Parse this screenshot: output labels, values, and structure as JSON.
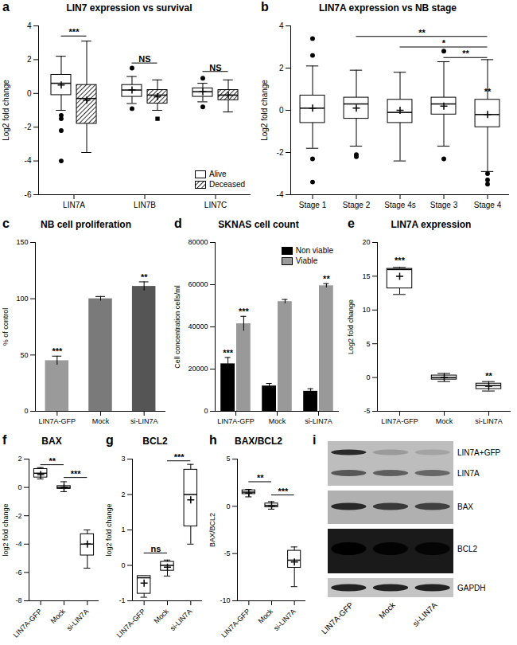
{
  "chart_data": [
    {
      "panel": "a",
      "type": "box",
      "title": "LIN7 expression vs survival",
      "y_label": "Log2 fold change",
      "categories": [
        "LIN7A",
        "LIN7B",
        "LIN7C"
      ],
      "series": [
        {
          "name": "Alive",
          "color": "#ffffff",
          "marker": "circle",
          "values": [
            {
              "min": -1.0,
              "q1": -0.1,
              "median": 0.6,
              "q3": 1.1,
              "max": 2.2,
              "mean": 0.5,
              "outliers": [
                -1.3,
                -1.5,
                -2.2,
                -4.0
              ]
            },
            {
              "min": -0.6,
              "q1": -0.2,
              "median": 0.2,
              "q3": 0.5,
              "max": 1.0,
              "mean": 0.2,
              "outliers": [
                -0.9,
                1.5
              ]
            },
            {
              "min": -0.5,
              "q1": -0.2,
              "median": 0.1,
              "q3": 0.3,
              "max": 0.6,
              "mean": 0.1,
              "outliers": [
                -0.8,
                0.9
              ]
            }
          ]
        },
        {
          "name": "Deceased",
          "color": "#000000",
          "marker": "square",
          "values": [
            {
              "min": -3.5,
              "q1": -1.8,
              "median": -0.3,
              "q3": 0.5,
              "max": 3.1,
              "mean": -0.4,
              "outliers": []
            },
            {
              "min": -1.0,
              "q1": -0.6,
              "median": -0.1,
              "q3": 0.2,
              "max": 0.8,
              "mean": -0.2,
              "outliers": [
                -1.5
              ]
            },
            {
              "min": -1.1,
              "q1": -0.4,
              "median": -0.1,
              "q3": 0.2,
              "max": 0.8,
              "mean": -0.1,
              "outliers": []
            }
          ]
        }
      ],
      "ylim": [
        -6,
        4
      ],
      "yticks": [
        -6,
        -4,
        -2,
        0,
        2,
        4
      ],
      "legend": "bottom-right",
      "annotations": [
        {
          "text": "***",
          "from": "LIN7A",
          "to": "LIN7A",
          "y": 3.4
        },
        {
          "text": "NS",
          "from": "LIN7B",
          "to": "LIN7B",
          "y": 1.8
        },
        {
          "text": "NS",
          "from": "LIN7C",
          "to": "LIN7C",
          "y": 1.3
        }
      ]
    },
    {
      "panel": "b",
      "type": "box",
      "title": "LIN7A expression vs NB stage",
      "y_label": "Log2 fold change",
      "categories": [
        "Stage 1",
        "Stage 2",
        "Stage 4s",
        "Stage 3",
        "Stage 4"
      ],
      "series": [
        {
          "color": "#ffffff",
          "marker": "circle",
          "values": [
            {
              "min": -1.8,
              "q1": -0.6,
              "median": 0.1,
              "q3": 0.7,
              "max": 2.1,
              "mean": 0.1,
              "outliers": [
                2.6,
                3.4,
                -2.3,
                -3.4
              ]
            },
            {
              "min": -1.7,
              "q1": -0.4,
              "median": 0.3,
              "q3": 0.6,
              "max": 1.9,
              "mean": 0.1,
              "outliers": [
                -2.1,
                -2.2
              ]
            },
            {
              "min": -2.4,
              "q1": -0.6,
              "median": -0.1,
              "q3": 0.5,
              "max": 1.8,
              "mean": 0.0,
              "outliers": []
            },
            {
              "min": -1.7,
              "q1": -0.2,
              "median": 0.3,
              "q3": 0.6,
              "max": 2.3,
              "mean": 0.2,
              "outliers": [
                -2.3,
                2.8
              ]
            },
            {
              "min": -2.9,
              "q1": -0.8,
              "median": -0.2,
              "q3": 0.5,
              "max": 2.4,
              "mean": -0.2,
              "outliers": [
                -3.0,
                -3.3,
                -3.5
              ]
            }
          ]
        }
      ],
      "ylim": [
        -4,
        4
      ],
      "yticks": [
        -4,
        -2,
        0,
        2,
        4
      ],
      "annotations": [
        {
          "text": "**",
          "from": "Stage 2",
          "to": "Stage 4",
          "y": 3.5
        },
        {
          "text": "*",
          "from": "Stage 4s",
          "to": "Stage 4",
          "y": 3.0
        },
        {
          "text": "**",
          "from": "Stage 3",
          "to": "Stage 4",
          "y": 2.5
        },
        {
          "text": "**",
          "at": "Stage 4",
          "y": 0.7
        }
      ]
    },
    {
      "panel": "c",
      "type": "bar",
      "title": "NB cell proliferation",
      "y_label": "% of control",
      "categories": [
        "LIN7A-GFP",
        "Mock",
        "si-LIN7A"
      ],
      "values": [
        45,
        100,
        111
      ],
      "errors": [
        4,
        2,
        4
      ],
      "colors": [
        "#9a9a9a",
        "#7a7a7a",
        "#555555"
      ],
      "ylim": [
        0,
        150
      ],
      "yticks": [
        0,
        50,
        100,
        150
      ],
      "annotations": [
        {
          "text": "***",
          "at": "LIN7A-GFP",
          "y": 50
        },
        {
          "text": "**",
          "at": "si-LIN7A",
          "y": 116
        }
      ]
    },
    {
      "panel": "d",
      "type": "bar",
      "title": "SKNAS cell count",
      "y_label": "Cell concentration cells/ml",
      "categories": [
        "LIN7A-GFP",
        "Mock",
        "si-LIN7A"
      ],
      "series": [
        {
          "name": "Non viable",
          "color": "#000000",
          "values": [
            22500,
            12000,
            9500
          ],
          "errors": [
            3000,
            1200,
            1200
          ]
        },
        {
          "name": "Viable",
          "color": "#999999",
          "values": [
            41500,
            52000,
            59500
          ],
          "errors": [
            3500,
            1000,
            1000
          ]
        }
      ],
      "ylim": [
        0,
        80000
      ],
      "yticks": [
        0,
        20000,
        40000,
        60000,
        80000
      ],
      "legend": "top-right",
      "annotations": [
        {
          "text": "***",
          "at": "LIN7A-GFP",
          "series": "Non viable",
          "y": 26000
        },
        {
          "text": "***",
          "at": "LIN7A-GFP",
          "series": "Viable",
          "y": 45500
        },
        {
          "text": "**",
          "at": "si-LIN7A",
          "series": "Viable",
          "y": 61000
        }
      ]
    },
    {
      "panel": "e",
      "type": "box",
      "title": "LIN7A expression",
      "y_label": "Log2 fold change",
      "categories": [
        "LIN7A-GFP",
        "Mock",
        "si-LIN7A"
      ],
      "series": [
        {
          "color": "#ffffff",
          "marker": "circle",
          "values": [
            {
              "min": 12.3,
              "q1": 13.2,
              "median": 16.0,
              "q3": 16.1,
              "max": 16.3,
              "mean": 15.0,
              "outliers": []
            },
            {
              "min": -0.6,
              "q1": -0.3,
              "median": 0.0,
              "q3": 0.3,
              "max": 0.6,
              "mean": 0.0,
              "outliers": []
            },
            {
              "min": -2.0,
              "q1": -1.7,
              "median": -1.2,
              "q3": -0.9,
              "max": -0.6,
              "mean": -1.3,
              "outliers": []
            }
          ]
        }
      ],
      "ylim": [
        -5,
        20
      ],
      "yticks": [
        -5,
        0,
        5,
        10,
        15,
        20
      ],
      "annotations": [
        {
          "text": "***",
          "at": "LIN7A-GFP",
          "y": 16.8
        },
        {
          "text": "**",
          "at": "si-LIN7A",
          "y": -0.3
        }
      ]
    },
    {
      "panel": "f",
      "type": "box",
      "title": "BAX",
      "y_label": "log2 fold change",
      "categories": [
        "LIN7A-GFP",
        "Mock",
        "si-LIN7A"
      ],
      "series": [
        {
          "color": "#ffffff",
          "marker": "circle",
          "values": [
            {
              "min": 0.6,
              "q1": 0.7,
              "median": 1.0,
              "q3": 1.3,
              "max": 1.4,
              "mean": 0.9,
              "outliers": []
            },
            {
              "min": -0.3,
              "q1": -0.1,
              "median": 0.0,
              "q3": 0.1,
              "max": 0.4,
              "mean": 0.0,
              "outliers": []
            },
            {
              "min": -5.7,
              "q1": -4.8,
              "median": -4.0,
              "q3": -3.3,
              "max": -3.0,
              "mean": -4.0,
              "outliers": []
            }
          ]
        }
      ],
      "ylim": [
        -8,
        2
      ],
      "yticks": [
        -8,
        -6,
        -4,
        -2,
        0,
        2
      ],
      "annotations": [
        {
          "text": "**",
          "from": "LIN7A-GFP",
          "to": "Mock",
          "y": 1.6
        },
        {
          "text": "***",
          "from": "Mock",
          "to": "si-LIN7A",
          "y": 0.7
        }
      ]
    },
    {
      "panel": "g",
      "type": "box",
      "title": "BCL2",
      "y_label": "log2 fold change",
      "categories": [
        "LIN7A-GFP",
        "Mock",
        "si-LIN7A"
      ],
      "series": [
        {
          "color": "#ffffff",
          "marker": "circle",
          "values": [
            {
              "min": -0.9,
              "q1": -0.8,
              "median": -0.35,
              "q3": -0.3,
              "max": -0.3,
              "mean": -0.5,
              "outliers": []
            },
            {
              "min": -0.3,
              "q1": -0.15,
              "median": 0.0,
              "q3": 0.1,
              "max": 0.15,
              "mean": -0.05,
              "outliers": []
            },
            {
              "min": 0.6,
              "q1": 1.1,
              "median": 2.0,
              "q3": 2.7,
              "max": 2.85,
              "mean": 1.85,
              "outliers": []
            }
          ]
        }
      ],
      "ylim": [
        -1,
        3
      ],
      "yticks": [
        -1,
        0,
        1,
        2,
        3
      ],
      "annotations": [
        {
          "text": "ns",
          "from": "LIN7A-GFP",
          "to": "Mock",
          "y": 0.35
        },
        {
          "text": "***",
          "from": "Mock",
          "to": "si-LIN7A",
          "y": 2.95
        }
      ]
    },
    {
      "panel": "h",
      "type": "box",
      "title": "BAX/BCL2",
      "y_label": "BAX/BCL2",
      "categories": [
        "LIN7A-GFP",
        "Mock",
        "si-LIN7A"
      ],
      "series": [
        {
          "color": "#ffffff",
          "marker": "circle",
          "values": [
            {
              "min": 1.0,
              "q1": 1.3,
              "median": 1.5,
              "q3": 1.7,
              "max": 1.8,
              "mean": 1.4,
              "outliers": []
            },
            {
              "min": -0.3,
              "q1": -0.1,
              "median": 0.1,
              "q3": 0.3,
              "max": 0.5,
              "mean": 0.1,
              "outliers": []
            },
            {
              "min": -8.5,
              "q1": -6.5,
              "median": -5.7,
              "q3": -4.7,
              "max": -4.3,
              "mean": -5.9,
              "outliers": []
            }
          ]
        }
      ],
      "ylim": [
        -10,
        5
      ],
      "yticks": [
        -10,
        -5,
        0,
        5
      ],
      "annotations": [
        {
          "text": "**",
          "from": "LIN7A-GFP",
          "to": "Mock",
          "y": 2.6
        },
        {
          "text": "***",
          "from": "Mock",
          "to": "si-LIN7A",
          "y": 1.2
        }
      ]
    },
    {
      "panel": "i",
      "type": "blot",
      "rows": [
        "LIN7A+GFP",
        "LIN7A",
        "BAX",
        "BCL2",
        "GAPDH"
      ],
      "lanes": [
        "LIN7A-GFP",
        "Mock",
        "si-LIN7A"
      ]
    }
  ]
}
